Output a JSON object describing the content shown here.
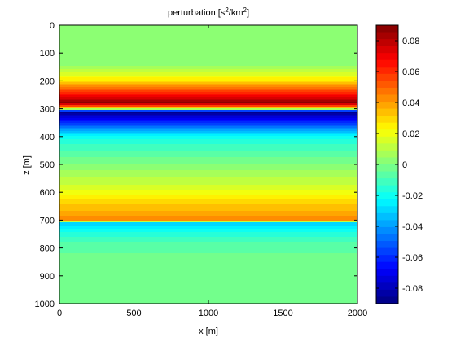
{
  "chart_data": {
    "type": "heatmap",
    "title_main": "perturbation [s",
    "title_exp1": "2",
    "title_mid": "/km",
    "title_exp2": "2",
    "title_end": "]",
    "xlabel": "x [m]",
    "ylabel": "z [m]",
    "xlim": [
      0,
      2000
    ],
    "ylim": [
      0,
      1000
    ],
    "y_reversed": true,
    "x_ticks": [
      0,
      500,
      1000,
      1500,
      2000
    ],
    "x_tick_labels": [
      "0",
      "500",
      "1000",
      "1500",
      "2000"
    ],
    "y_ticks": [
      0,
      100,
      200,
      300,
      400,
      500,
      600,
      700,
      800,
      900,
      1000
    ],
    "y_tick_labels": [
      "0",
      "100",
      "200",
      "300",
      "400",
      "500",
      "600",
      "700",
      "800",
      "900",
      "1000"
    ],
    "colormap": "jet",
    "clim": [
      -0.09,
      0.09
    ],
    "colorbar_ticks": [
      0.08,
      0.06,
      0.04,
      0.02,
      0,
      -0.02,
      -0.04,
      -0.06,
      -0.08
    ],
    "colorbar_tick_labels": [
      "0.08",
      "0.06",
      "0.04",
      "0.02",
      "0",
      "-0.02",
      "-0.04",
      "-0.06",
      "-0.08"
    ],
    "profile_z": [
      0,
      100,
      150,
      180,
      200,
      220,
      240,
      260,
      280,
      300,
      310,
      320,
      340,
      360,
      380,
      400,
      450,
      500,
      540,
      580,
      600,
      620,
      640,
      660,
      680,
      700,
      710,
      730,
      750,
      780,
      820,
      880,
      1000
    ],
    "profile_value": [
      0,
      0,
      0.005,
      0.017,
      0.028,
      0.045,
      0.06,
      0.075,
      0.088,
      0.02,
      -0.088,
      -0.08,
      -0.065,
      -0.05,
      -0.035,
      -0.02,
      -0.009,
      0,
      0.008,
      0.015,
      0.02,
      0.025,
      0.03,
      0.035,
      0.04,
      0.045,
      -0.03,
      -0.022,
      -0.015,
      -0.009,
      -0.004,
      -0.001,
      0
    ]
  }
}
